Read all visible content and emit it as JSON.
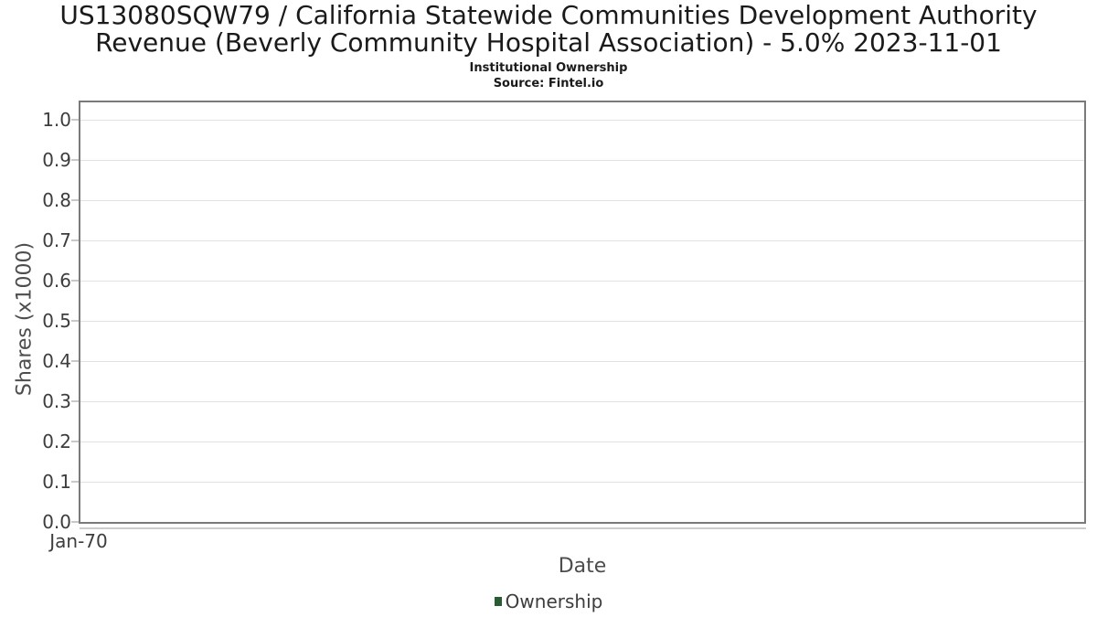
{
  "header": {
    "title": "US13080SQW79 / California Statewide Communities Development Authority Revenue (Beverly Community Hospital Association) - 5.0% 2023-11-01",
    "subtitle": "Institutional Ownership",
    "source": "Source: Fintel.io"
  },
  "chart_data": {
    "type": "line",
    "title": "US13080SQW79 / California Statewide Communities Development Authority Revenue (Beverly Community Hospital Association) - 5.0% 2023-11-01",
    "subtitle": "Institutional Ownership",
    "source": "Source: Fintel.io",
    "xlabel": "Date",
    "ylabel": "Shares (x1000)",
    "yticks": [
      "0.0",
      "0.1",
      "0.2",
      "0.3",
      "0.4",
      "0.5",
      "0.6",
      "0.7",
      "0.8",
      "0.9",
      "1.0"
    ],
    "xticks": [
      "Jan-70"
    ],
    "ylim": [
      0.0,
      1.05
    ],
    "grid": true,
    "legend_position": "bottom",
    "series": [
      {
        "name": "Ownership",
        "color": "#2a5c34",
        "x": [],
        "values": []
      }
    ]
  },
  "colors": {
    "accent_green": "#2a5c34",
    "plot_border": "#7a7a7a",
    "gridline": "#e2e2e2",
    "tick_mark": "#c9c9c9",
    "title_text": "#1a1a1a",
    "axis_title_text": "#4d4d4d",
    "tick_label_text": "#3d3d3d",
    "background": "#ffffff"
  }
}
